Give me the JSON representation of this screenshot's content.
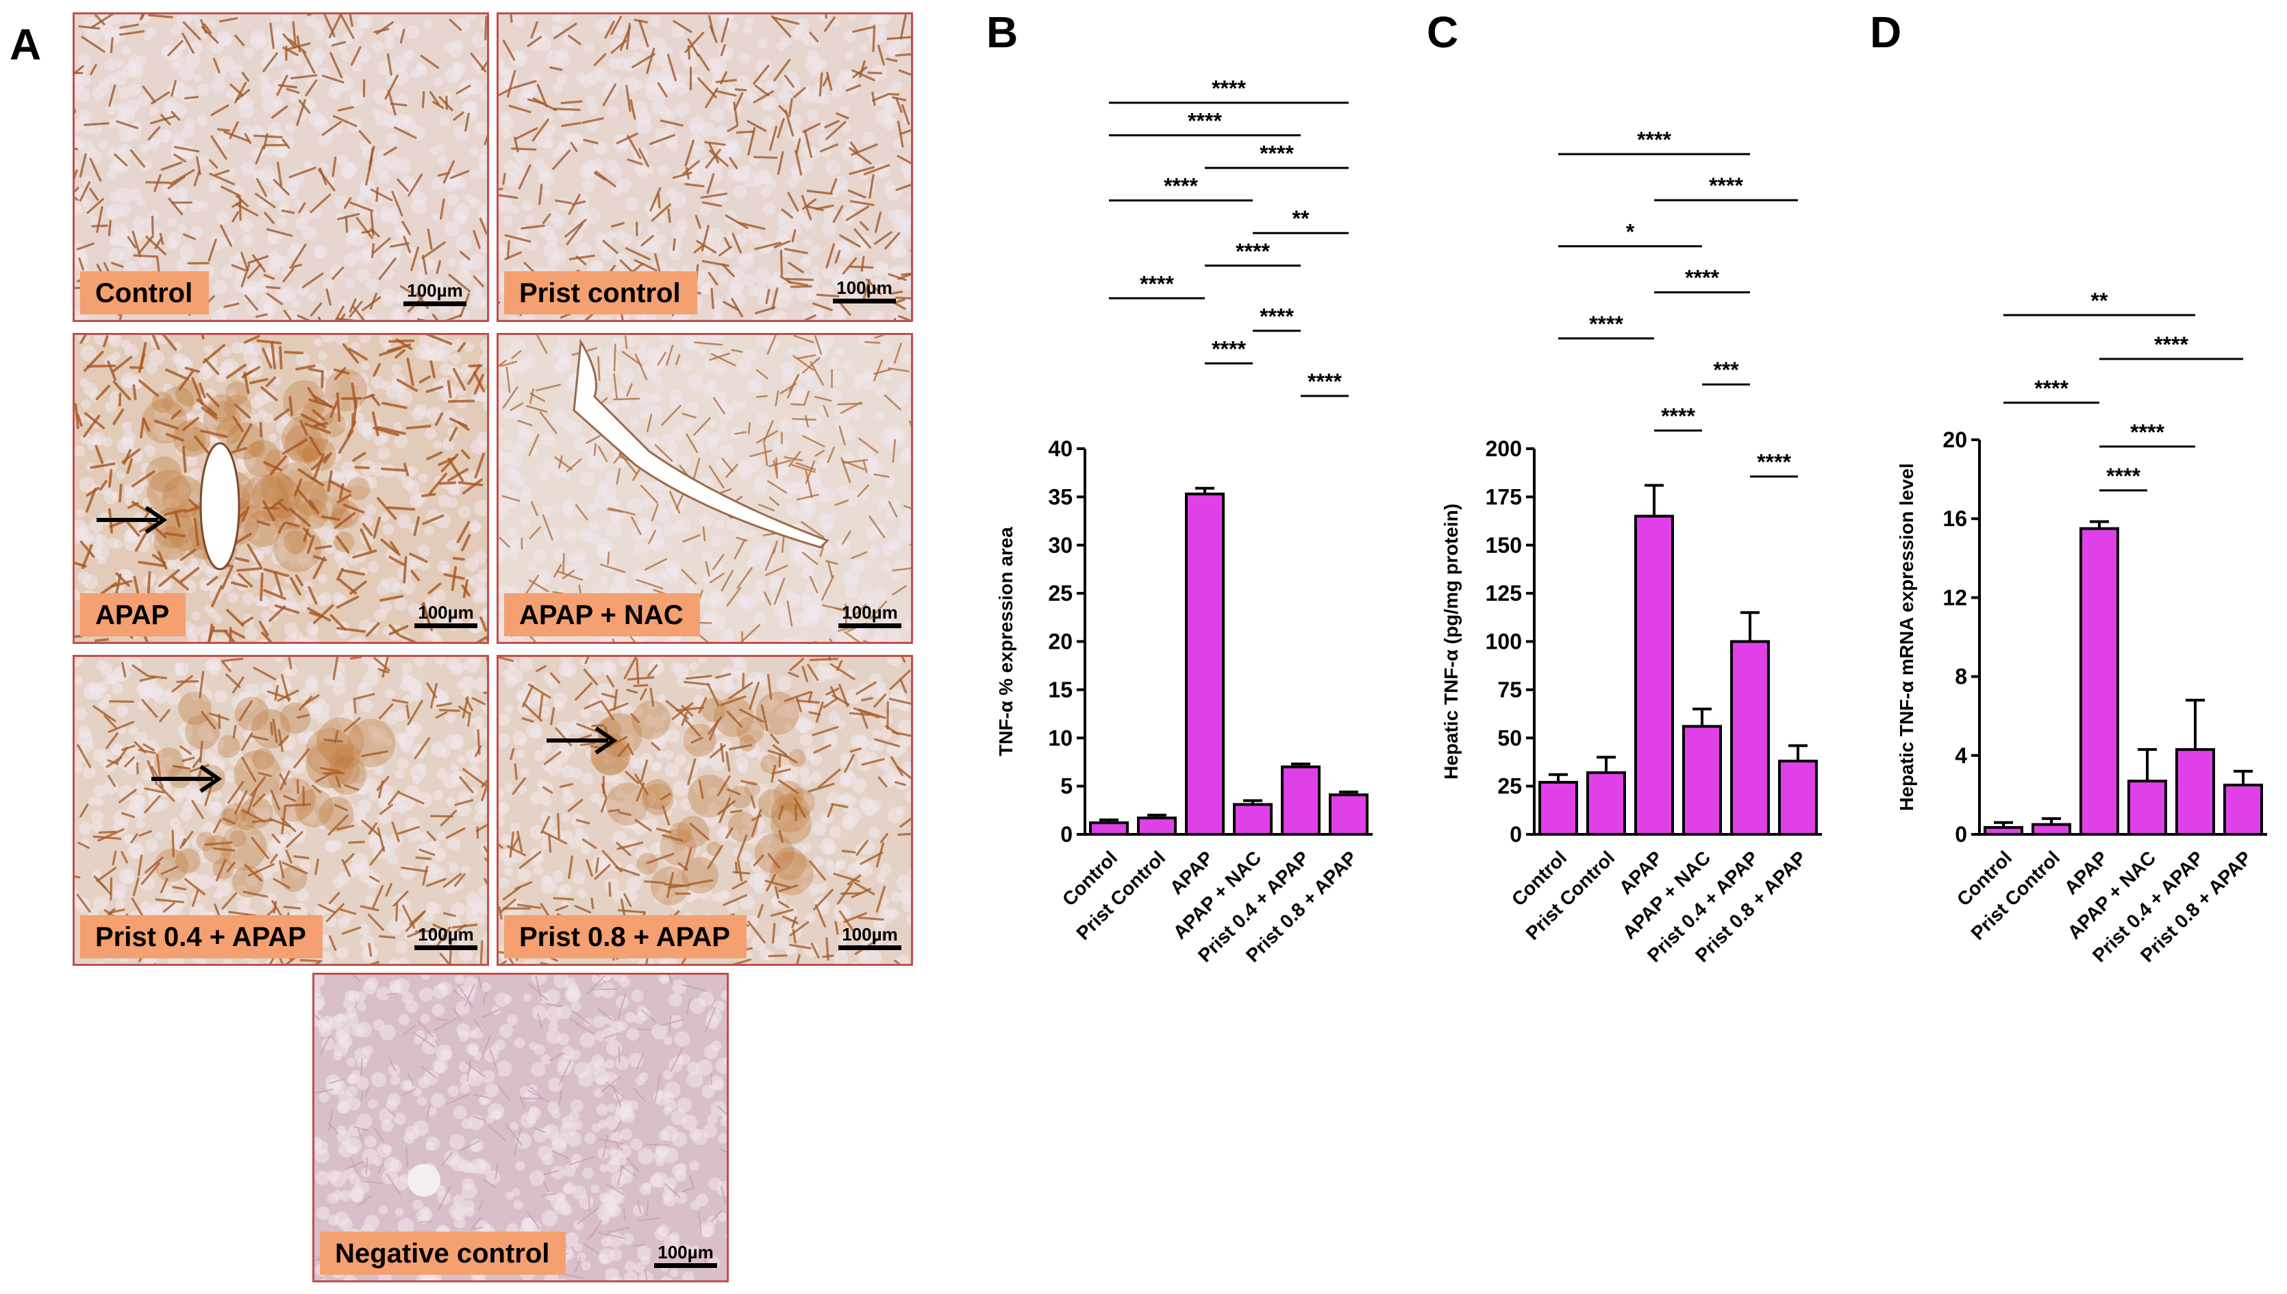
{
  "panels": {
    "a": "A",
    "b": "B",
    "c": "C",
    "d": "D"
  },
  "micrographs": [
    {
      "label": "Control",
      "scale": "100µm",
      "stain": "brown-network",
      "arrow": false
    },
    {
      "label": "Prist control",
      "scale": "100µm",
      "stain": "brown-network",
      "arrow": false
    },
    {
      "label": "APAP",
      "scale": "100µm",
      "stain": "heavy-brown",
      "arrow": true
    },
    {
      "label": "APAP + NAC",
      "scale": "100µm",
      "stain": "light-brown",
      "arrow": false
    },
    {
      "label": "Prist 0.4 + APAP",
      "scale": "100µm",
      "stain": "medium-brown",
      "arrow": true
    },
    {
      "label": "Prist 0.8 + APAP",
      "scale": "100µm",
      "stain": "medium-brown",
      "arrow": true
    },
    {
      "label": "Negative control",
      "scale": "100µm",
      "stain": "negative",
      "arrow": false
    }
  ],
  "chart_data": [
    {
      "type": "bar",
      "panel": "B",
      "categories": [
        "Control",
        "Prist Control",
        "APAP",
        "APAP + NAC",
        "Prist 0.4 + APAP",
        "Prist 0.8 + APAP"
      ],
      "values": [
        1.2,
        1.7,
        35.3,
        3.1,
        7.0,
        4.1
      ],
      "errors": [
        0.3,
        0.3,
        0.6,
        0.4,
        0.3,
        0.3
      ],
      "ylabel": "TNF-α  % expression area",
      "ylim": [
        0,
        40
      ],
      "yticks": [
        "0",
        "5",
        "10",
        "15",
        "20",
        "25",
        "30",
        "35",
        "40"
      ],
      "bar_color": "#e040e8",
      "significance": [
        {
          "from": 0,
          "to": 5,
          "label": "****"
        },
        {
          "from": 0,
          "to": 4,
          "label": "****"
        },
        {
          "from": 2,
          "to": 5,
          "label": "****"
        },
        {
          "from": 0,
          "to": 3,
          "label": "****"
        },
        {
          "from": 3,
          "to": 5,
          "label": "**"
        },
        {
          "from": 2,
          "to": 4,
          "label": "****"
        },
        {
          "from": 0,
          "to": 2,
          "label": "****"
        },
        {
          "from": 3,
          "to": 4,
          "label": "****"
        },
        {
          "from": 2,
          "to": 3,
          "label": "****"
        },
        {
          "from": 4,
          "to": 5,
          "label": "****"
        }
      ]
    },
    {
      "type": "bar",
      "panel": "C",
      "categories": [
        "Control",
        "Prist Control",
        "APAP",
        "APAP + NAC",
        "Prist 0.4 + APAP",
        "Prist 0.8 + APAP"
      ],
      "values": [
        27,
        32,
        165,
        56,
        100,
        38
      ],
      "errors": [
        4,
        8,
        16,
        9,
        15,
        8
      ],
      "ylabel": "Hepatic TNF-α (pg/mg protein)",
      "ylim": [
        0,
        200
      ],
      "yticks": [
        "0",
        "25",
        "50",
        "75",
        "100",
        "125",
        "150",
        "175",
        "200"
      ],
      "bar_color": "#e040e8",
      "significance": [
        {
          "from": 0,
          "to": 4,
          "label": "****"
        },
        {
          "from": 2,
          "to": 5,
          "label": "****"
        },
        {
          "from": 0,
          "to": 3,
          "label": "*"
        },
        {
          "from": 2,
          "to": 4,
          "label": "****"
        },
        {
          "from": 0,
          "to": 2,
          "label": "****"
        },
        {
          "from": 3,
          "to": 4,
          "label": "***"
        },
        {
          "from": 2,
          "to": 3,
          "label": "****"
        },
        {
          "from": 4,
          "to": 5,
          "label": "****"
        }
      ]
    },
    {
      "type": "bar",
      "panel": "D",
      "categories": [
        "Control",
        "Prist Control",
        "APAP",
        "APAP + NAC",
        "Prist 0.4 + APAP",
        "Prist 0.8 + APAP"
      ],
      "values": [
        0.35,
        0.5,
        15.5,
        2.7,
        4.3,
        2.5
      ],
      "errors": [
        0.25,
        0.3,
        0.35,
        1.6,
        2.5,
        0.7
      ],
      "ylabel": "Hepatic TNF-α mRNA expression level",
      "ylim": [
        0,
        20
      ],
      "yticks": [
        "0",
        "4",
        "8",
        "12",
        "16",
        "20"
      ],
      "bar_color": "#e040e8",
      "significance": [
        {
          "from": 0,
          "to": 4,
          "label": "**"
        },
        {
          "from": 2,
          "to": 5,
          "label": "****"
        },
        {
          "from": 0,
          "to": 2,
          "label": "****"
        },
        {
          "from": 2,
          "to": 4,
          "label": "****"
        },
        {
          "from": 2,
          "to": 3,
          "label": "****"
        }
      ]
    }
  ]
}
